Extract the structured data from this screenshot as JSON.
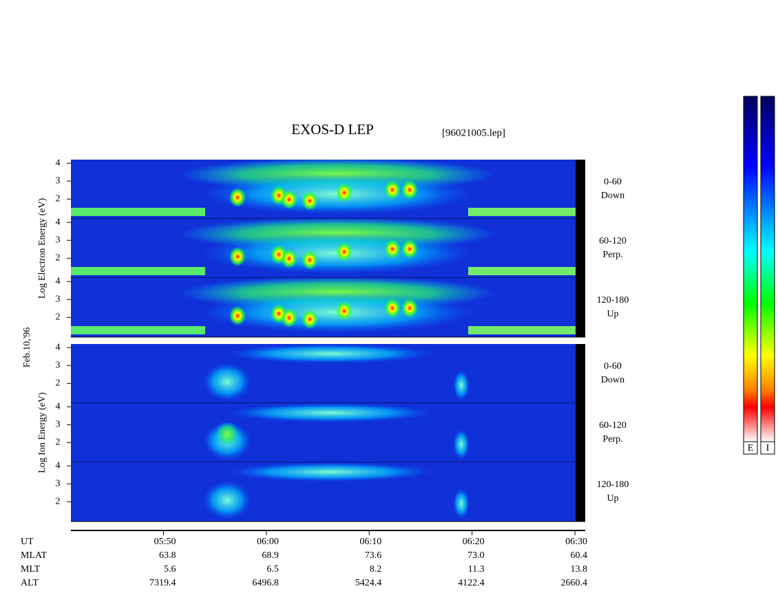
{
  "title": "EXOS-D LEP",
  "filename": "[96021005.lep]",
  "chart_data": {
    "type": "spectrogram",
    "date_label": "Feb.10,'96",
    "xlim": [
      341,
      391
    ],
    "xticks": [
      {
        "value": 350,
        "label": "05:50"
      },
      {
        "value": 360,
        "label": "06:00"
      },
      {
        "value": 370,
        "label": "06:10"
      },
      {
        "value": 380,
        "label": "06:20"
      },
      {
        "value": 390,
        "label": "06:30"
      }
    ],
    "ylim": [
      0.9,
      4.2
    ],
    "yticks": [
      2,
      3,
      4
    ],
    "groups": [
      {
        "ylabel": "Log Electron Energy (eV)",
        "panels": [
          {
            "pitch": "0-60",
            "direction": "Down"
          },
          {
            "pitch": "60-120",
            "direction": "Perp."
          },
          {
            "pitch": "120-180",
            "direction": "Up"
          }
        ]
      },
      {
        "ylabel": "Log Ion Energy (eV)",
        "panels": [
          {
            "pitch": "0-60",
            "direction": "Down"
          },
          {
            "pitch": "60-120",
            "direction": "Perp."
          },
          {
            "pitch": "120-180",
            "direction": "Up"
          }
        ]
      }
    ],
    "colorbar_labels": [
      "E",
      "I"
    ]
  },
  "ephemeris": {
    "time_label": "UT",
    "rows": [
      {
        "label": "MLAT",
        "values": [
          "63.8",
          "68.9",
          "73.6",
          "73.0",
          "60.4"
        ]
      },
      {
        "label": "MLT",
        "values": [
          "5.6",
          "6.5",
          "8.2",
          "11.3",
          "13.8"
        ]
      },
      {
        "label": "ALT",
        "values": [
          "7319.4",
          "6496.8",
          "5424.4",
          "4122.4",
          "2660.4"
        ]
      }
    ]
  }
}
